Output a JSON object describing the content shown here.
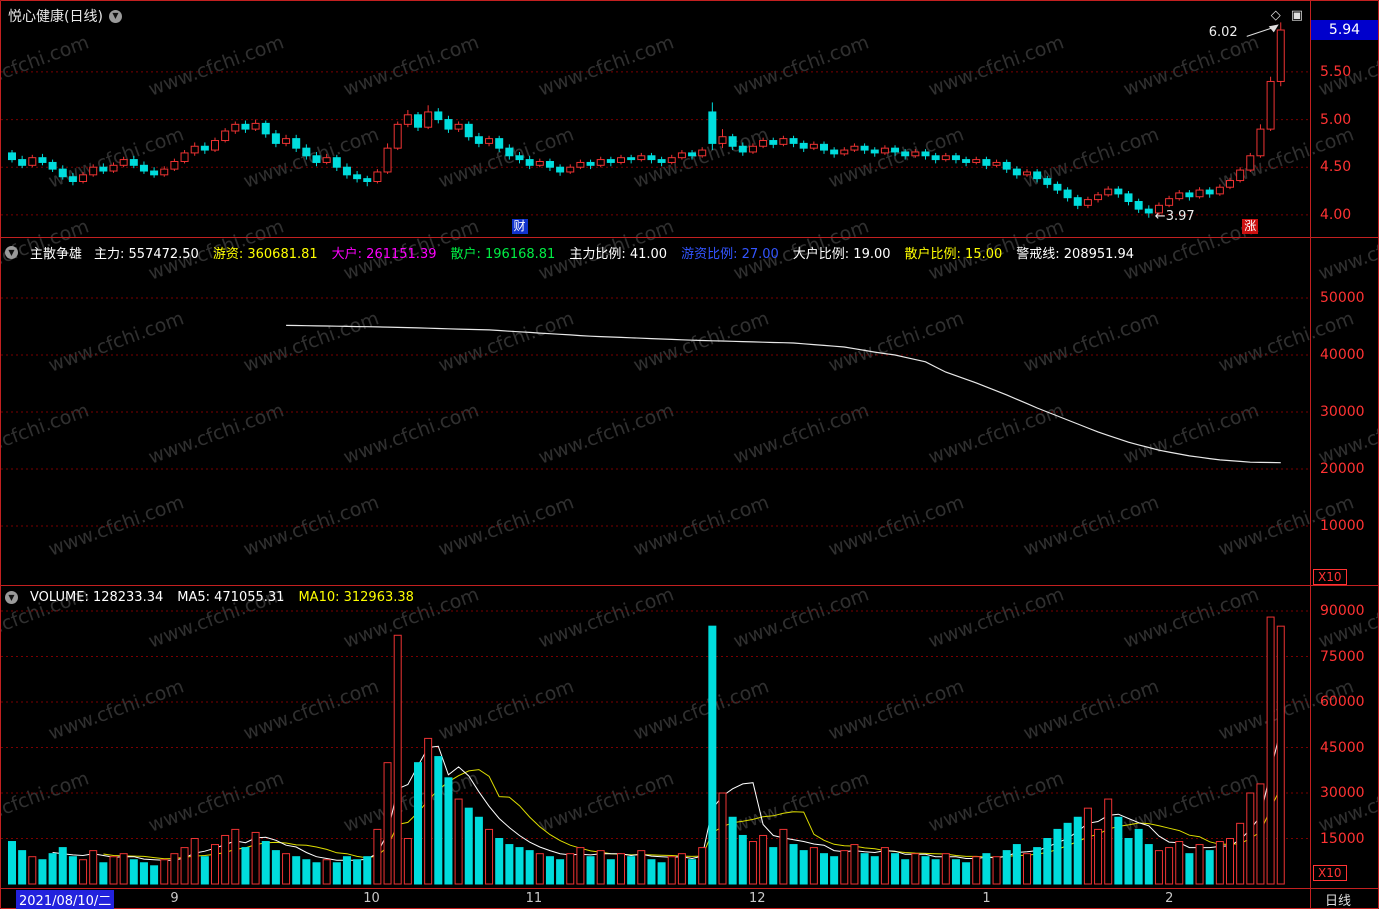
{
  "title_bar": {
    "stock_title": "悦心健康(日线)",
    "diamond_icon": "◇",
    "window_icon": "▣"
  },
  "glyphs": {
    "collapse": "▼"
  },
  "price_panel": {
    "y_ticks": [
      {
        "label": "5.50",
        "value": 5.5
      },
      {
        "label": "5.00",
        "value": 5.0
      },
      {
        "label": "4.50",
        "value": 4.5
      },
      {
        "label": "4.00",
        "value": 4.0
      }
    ],
    "current_price": "5.94",
    "high_label": "6.02",
    "low_label": "←3.97",
    "event_badge": "财",
    "limit_badge": "涨"
  },
  "indicator_panel": {
    "name": "主散争雄",
    "fields": [
      {
        "label": "主力:",
        "value": "557472.50",
        "color": "#ffffff"
      },
      {
        "label": "游资:",
        "value": "360681.81",
        "color": "#ffff00"
      },
      {
        "label": "大户:",
        "value": "261151.39",
        "color": "#ff00ff"
      },
      {
        "label": "散户:",
        "value": "196168.81",
        "color": "#00ee44"
      },
      {
        "label": "主力比例:",
        "value": "41.00",
        "color": "#ffffff"
      },
      {
        "label": "游资比例:",
        "value": "27.00",
        "color": "#3355ff"
      },
      {
        "label": "大户比例:",
        "value": "19.00",
        "color": "#ffffff"
      },
      {
        "label": "散户比例:",
        "value": "15.00",
        "color": "#ffff00"
      },
      {
        "label": "警戒线:",
        "value": "208951.94",
        "color": "#ffffff"
      }
    ],
    "y_ticks": [
      {
        "label": "50000",
        "value": 50000
      },
      {
        "label": "40000",
        "value": 40000
      },
      {
        "label": "30000",
        "value": 30000
      },
      {
        "label": "20000",
        "value": 20000
      },
      {
        "label": "10000",
        "value": 10000
      }
    ],
    "scale_label": "X10"
  },
  "volume_panel": {
    "fields": [
      {
        "label": "VOLUME:",
        "value": "128233.34",
        "color": "#ffffff"
      },
      {
        "label": "MA5:",
        "value": "471055.31",
        "color": "#ffffff"
      },
      {
        "label": "MA10:",
        "value": "312963.38",
        "color": "#ffff00"
      }
    ],
    "y_ticks": [
      {
        "label": "90000",
        "value": 90000
      },
      {
        "label": "75000",
        "value": 75000
      },
      {
        "label": "60000",
        "value": 60000
      },
      {
        "label": "45000",
        "value": 45000
      },
      {
        "label": "30000",
        "value": 30000
      },
      {
        "label": "15000",
        "value": 15000
      }
    ],
    "scale_label": "X10"
  },
  "time_axis": {
    "current_date": "2021/08/10/二",
    "period_label": "日线"
  },
  "watermark_text": "www.cfchi.com",
  "colors": {
    "up": "#ee3333",
    "down": "#00dddd",
    "grid": "#7a0000",
    "frame": "#c22020",
    "axis_text": "#ff3333",
    "ma5": "#ffffff",
    "ma10": "#dddd00",
    "main_line": "#e8e8e8",
    "price_box_bg": "#0000cc"
  },
  "chart_data": {
    "type": "candlestick+volume",
    "title": "悦心健康(日线)",
    "price_axis_range": [
      3.82,
      6.15
    ],
    "indicator_axis_range": [
      0,
      55000
    ],
    "volume_axis_range": [
      0,
      90000
    ],
    "month_ticks": [
      {
        "label": "9",
        "day": 16
      },
      {
        "label": "10",
        "day": 35
      },
      {
        "label": "11",
        "day": 51
      },
      {
        "label": "12",
        "day": 73
      },
      {
        "label": "1",
        "day": 96
      },
      {
        "label": "2",
        "day": 114
      }
    ],
    "event_badge_day": 50,
    "limit_badge_day": 122,
    "candles": [
      [
        4.65,
        4.68,
        4.55,
        4.58
      ],
      [
        4.58,
        4.62,
        4.49,
        4.52
      ],
      [
        4.52,
        4.63,
        4.5,
        4.6
      ],
      [
        4.6,
        4.64,
        4.52,
        4.55
      ],
      [
        4.55,
        4.58,
        4.45,
        4.48
      ],
      [
        4.48,
        4.52,
        4.37,
        4.4
      ],
      [
        4.4,
        4.44,
        4.31,
        4.35
      ],
      [
        4.35,
        4.45,
        4.33,
        4.42
      ],
      [
        4.42,
        4.53,
        4.4,
        4.5
      ],
      [
        4.5,
        4.54,
        4.43,
        4.46
      ],
      [
        4.46,
        4.55,
        4.44,
        4.52
      ],
      [
        4.52,
        4.61,
        4.5,
        4.58
      ],
      [
        4.58,
        4.62,
        4.49,
        4.52
      ],
      [
        4.52,
        4.56,
        4.43,
        4.46
      ],
      [
        4.46,
        4.5,
        4.39,
        4.42
      ],
      [
        4.42,
        4.51,
        4.4,
        4.48
      ],
      [
        4.48,
        4.59,
        4.46,
        4.56
      ],
      [
        4.56,
        4.68,
        4.54,
        4.65
      ],
      [
        4.65,
        4.76,
        4.62,
        4.72
      ],
      [
        4.72,
        4.76,
        4.64,
        4.68
      ],
      [
        4.68,
        4.81,
        4.66,
        4.78
      ],
      [
        4.78,
        4.91,
        4.76,
        4.88
      ],
      [
        4.88,
        4.98,
        4.85,
        4.95
      ],
      [
        4.95,
        4.99,
        4.86,
        4.9
      ],
      [
        4.9,
        5.0,
        4.88,
        4.96
      ],
      [
        4.96,
        4.99,
        4.81,
        4.85
      ],
      [
        4.85,
        4.89,
        4.71,
        4.75
      ],
      [
        4.75,
        4.84,
        4.72,
        4.8
      ],
      [
        4.8,
        4.84,
        4.66,
        4.7
      ],
      [
        4.7,
        4.74,
        4.58,
        4.62
      ],
      [
        4.62,
        4.66,
        4.51,
        4.55
      ],
      [
        4.55,
        4.64,
        4.53,
        4.6
      ],
      [
        4.6,
        4.63,
        4.46,
        4.5
      ],
      [
        4.5,
        4.54,
        4.38,
        4.42
      ],
      [
        4.42,
        4.46,
        4.34,
        4.38
      ],
      [
        4.38,
        4.41,
        4.3,
        4.35
      ],
      [
        4.35,
        4.48,
        4.33,
        4.45
      ],
      [
        4.45,
        4.75,
        4.43,
        4.7
      ],
      [
        4.7,
        4.98,
        4.68,
        4.95
      ],
      [
        4.95,
        5.1,
        4.92,
        5.05
      ],
      [
        5.05,
        5.08,
        4.88,
        4.92
      ],
      [
        4.92,
        5.15,
        4.9,
        5.08
      ],
      [
        5.08,
        5.12,
        4.96,
        5.0
      ],
      [
        5.0,
        5.04,
        4.86,
        4.9
      ],
      [
        4.9,
        4.98,
        4.87,
        4.95
      ],
      [
        4.95,
        4.98,
        4.78,
        4.82
      ],
      [
        4.82,
        4.86,
        4.71,
        4.75
      ],
      [
        4.75,
        4.83,
        4.72,
        4.8
      ],
      [
        4.8,
        4.83,
        4.66,
        4.7
      ],
      [
        4.7,
        4.74,
        4.58,
        4.62
      ],
      [
        4.62,
        4.66,
        4.54,
        4.58
      ],
      [
        4.58,
        4.62,
        4.48,
        4.52
      ],
      [
        4.52,
        4.59,
        4.5,
        4.56
      ],
      [
        4.56,
        4.59,
        4.46,
        4.5
      ],
      [
        4.5,
        4.53,
        4.41,
        4.45
      ],
      [
        4.45,
        4.53,
        4.43,
        4.5
      ],
      [
        4.5,
        4.58,
        4.48,
        4.55
      ],
      [
        4.55,
        4.58,
        4.48,
        4.52
      ],
      [
        4.52,
        4.61,
        4.5,
        4.58
      ],
      [
        4.58,
        4.61,
        4.51,
        4.55
      ],
      [
        4.55,
        4.63,
        4.53,
        4.6
      ],
      [
        4.6,
        4.63,
        4.54,
        4.58
      ],
      [
        4.58,
        4.65,
        4.56,
        4.62
      ],
      [
        4.62,
        4.65,
        4.54,
        4.58
      ],
      [
        4.58,
        4.61,
        4.51,
        4.55
      ],
      [
        4.55,
        4.63,
        4.53,
        4.6
      ],
      [
        4.6,
        4.68,
        4.58,
        4.65
      ],
      [
        4.65,
        4.68,
        4.58,
        4.62
      ],
      [
        4.62,
        4.71,
        4.6,
        4.68
      ],
      [
        5.08,
        5.18,
        4.68,
        4.75
      ],
      [
        4.75,
        4.9,
        4.7,
        4.82
      ],
      [
        4.82,
        4.85,
        4.68,
        4.72
      ],
      [
        4.72,
        4.76,
        4.62,
        4.66
      ],
      [
        4.66,
        4.75,
        4.64,
        4.72
      ],
      [
        4.72,
        4.81,
        4.7,
        4.78
      ],
      [
        4.78,
        4.81,
        4.7,
        4.74
      ],
      [
        4.74,
        4.83,
        4.72,
        4.8
      ],
      [
        4.8,
        4.83,
        4.71,
        4.75
      ],
      [
        4.75,
        4.78,
        4.66,
        4.7
      ],
      [
        4.7,
        4.77,
        4.68,
        4.74
      ],
      [
        4.74,
        4.77,
        4.64,
        4.68
      ],
      [
        4.68,
        4.71,
        4.6,
        4.64
      ],
      [
        4.64,
        4.71,
        4.62,
        4.68
      ],
      [
        4.68,
        4.75,
        4.66,
        4.72
      ],
      [
        4.72,
        4.75,
        4.64,
        4.68
      ],
      [
        4.68,
        4.71,
        4.61,
        4.65
      ],
      [
        4.65,
        4.73,
        4.63,
        4.7
      ],
      [
        4.7,
        4.73,
        4.62,
        4.66
      ],
      [
        4.66,
        4.69,
        4.58,
        4.62
      ],
      [
        4.62,
        4.69,
        4.6,
        4.66
      ],
      [
        4.66,
        4.69,
        4.58,
        4.62
      ],
      [
        4.62,
        4.65,
        4.54,
        4.58
      ],
      [
        4.58,
        4.65,
        4.56,
        4.62
      ],
      [
        4.62,
        4.65,
        4.54,
        4.58
      ],
      [
        4.58,
        4.61,
        4.51,
        4.55
      ],
      [
        4.55,
        4.61,
        4.53,
        4.58
      ],
      [
        4.58,
        4.61,
        4.48,
        4.52
      ],
      [
        4.52,
        4.58,
        4.5,
        4.55
      ],
      [
        4.55,
        4.58,
        4.44,
        4.48
      ],
      [
        4.48,
        4.51,
        4.38,
        4.42
      ],
      [
        4.42,
        4.48,
        4.4,
        4.45
      ],
      [
        4.45,
        4.48,
        4.34,
        4.38
      ],
      [
        4.38,
        4.41,
        4.28,
        4.32
      ],
      [
        4.32,
        4.35,
        4.22,
        4.26
      ],
      [
        4.26,
        4.29,
        4.14,
        4.18
      ],
      [
        4.18,
        4.21,
        4.06,
        4.1
      ],
      [
        4.1,
        4.19,
        4.07,
        4.16
      ],
      [
        4.16,
        4.24,
        4.13,
        4.21
      ],
      [
        4.21,
        4.3,
        4.19,
        4.27
      ],
      [
        4.27,
        4.3,
        4.18,
        4.22
      ],
      [
        4.22,
        4.25,
        4.1,
        4.14
      ],
      [
        4.14,
        4.17,
        4.02,
        4.06
      ],
      [
        4.06,
        4.1,
        3.97,
        4.02
      ],
      [
        4.02,
        4.13,
        4.0,
        4.1
      ],
      [
        4.1,
        4.2,
        4.08,
        4.17
      ],
      [
        4.17,
        4.26,
        4.15,
        4.23
      ],
      [
        4.23,
        4.26,
        4.15,
        4.19
      ],
      [
        4.19,
        4.29,
        4.17,
        4.26
      ],
      [
        4.26,
        4.29,
        4.18,
        4.22
      ],
      [
        4.22,
        4.32,
        4.2,
        4.29
      ],
      [
        4.29,
        4.39,
        4.27,
        4.36
      ],
      [
        4.36,
        4.5,
        4.34,
        4.47
      ],
      [
        4.47,
        4.65,
        4.45,
        4.62
      ],
      [
        4.62,
        4.95,
        4.6,
        4.9
      ],
      [
        4.9,
        5.45,
        4.88,
        5.4
      ],
      [
        5.4,
        6.02,
        5.35,
        5.94
      ]
    ],
    "volumes": [
      14000,
      11000,
      9000,
      8000,
      10000,
      12000,
      9000,
      8000,
      11000,
      7000,
      9000,
      10000,
      8000,
      7000,
      6000,
      8000,
      10000,
      12000,
      15000,
      9000,
      13000,
      16000,
      18000,
      12000,
      17000,
      14000,
      11000,
      10000,
      9000,
      8000,
      7000,
      8000,
      7000,
      9000,
      8000,
      9000,
      18000,
      40000,
      82000,
      15000,
      40000,
      48000,
      42000,
      35000,
      28000,
      25000,
      22000,
      18000,
      15000,
      13000,
      12000,
      11000,
      10000,
      9000,
      8000,
      10000,
      12000,
      9000,
      11000,
      8000,
      10000,
      9000,
      11000,
      8000,
      7000,
      9000,
      10000,
      8000,
      12000,
      85000,
      30000,
      22000,
      16000,
      14000,
      16000,
      12000,
      18000,
      13000,
      11000,
      12000,
      10000,
      9000,
      11000,
      13000,
      10000,
      9000,
      12000,
      10000,
      8000,
      10000,
      9000,
      8000,
      10000,
      8000,
      7000,
      9000,
      10000,
      9000,
      11000,
      13000,
      10000,
      12000,
      15000,
      18000,
      20000,
      22000,
      25000,
      18000,
      28000,
      22000,
      15000,
      18000,
      13000,
      11000,
      12000,
      14000,
      10000,
      13000,
      11000,
      14000,
      15000,
      20000,
      30000,
      33000,
      88000,
      85000
    ],
    "main_force_line": [
      [
        27,
        45200
      ],
      [
        37,
        44900
      ],
      [
        47,
        44400
      ],
      [
        57,
        43300
      ],
      [
        67,
        42600
      ],
      [
        73,
        42300
      ],
      [
        77,
        42100
      ],
      [
        82,
        41400
      ],
      [
        85,
        40500
      ],
      [
        87,
        40000
      ],
      [
        90,
        38800
      ],
      [
        92,
        37000
      ],
      [
        95,
        35100
      ],
      [
        98,
        33000
      ],
      [
        101,
        30700
      ],
      [
        104,
        28600
      ],
      [
        107,
        26500
      ],
      [
        110,
        24700
      ],
      [
        113,
        23300
      ],
      [
        116,
        22300
      ],
      [
        119,
        21600
      ],
      [
        122,
        21200
      ],
      [
        125,
        21100
      ]
    ]
  }
}
